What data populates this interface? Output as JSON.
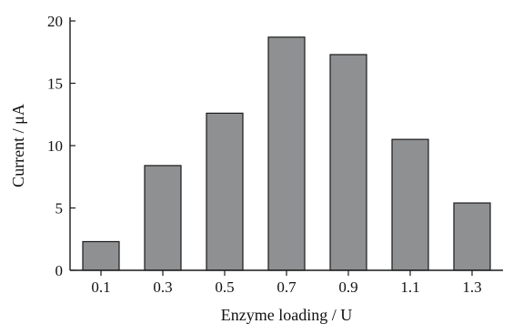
{
  "chart_data": {
    "type": "bar",
    "title": "",
    "xlabel": "Enzyme loading / U",
    "ylabel": "Current / μA",
    "categories": [
      "0.1",
      "0.3",
      "0.5",
      "0.7",
      "0.9",
      "1.1",
      "1.3"
    ],
    "values": [
      2.3,
      8.4,
      12.6,
      18.7,
      17.3,
      10.5,
      5.4
    ],
    "ylim": [
      0,
      20
    ],
    "yticks": [
      0,
      5,
      10,
      15,
      20
    ],
    "grid": false,
    "colors": {
      "bar_fill": "#8f9092",
      "bar_stroke": "#1a1a1a"
    }
  }
}
